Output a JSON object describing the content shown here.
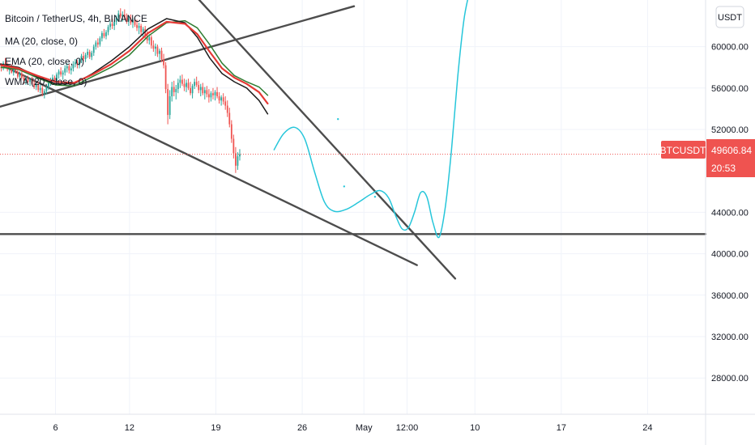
{
  "chart_data": {
    "type": "candlestick",
    "title": "Bitcoin / TetherUS, 4h, BINANCE",
    "symbol_tag": "BTCUSDT",
    "last_price": "49606.84",
    "countdown": "20:53",
    "currency": "USDT",
    "indicators": [
      {
        "label": "MA (20, close, 0)",
        "color": "#2e7d32"
      },
      {
        "label": "EMA (20, close, 0)",
        "color": "#e53935"
      },
      {
        "label": "WMA (20, close, 0)",
        "color": "#1e1e1e"
      }
    ],
    "y_ticks": [
      "60000.00",
      "56000.00",
      "52000.00",
      "44000.00",
      "40000.00",
      "36000.00",
      "32000.00",
      "28000.00"
    ],
    "y_tick_values": [
      60000,
      56000,
      52000,
      44000,
      40000,
      36000,
      32000,
      28000
    ],
    "ylim": [
      24500,
      64500
    ],
    "x_ticks": [
      "6",
      "12",
      "19",
      "26",
      "May",
      "12:00",
      "10",
      "17",
      "24"
    ],
    "x_tick_days": [
      6,
      12,
      19,
      26,
      31,
      34.5,
      40,
      47,
      54
    ],
    "xlim": [
      1.5,
      58.7
    ],
    "ohlc_day_start": 1.6,
    "ohlc_step_days": 0.1667,
    "ohlc": [
      [
        58100,
        58400,
        57600,
        57900
      ],
      [
        57900,
        58600,
        57700,
        58400
      ],
      [
        58400,
        58900,
        58000,
        58200
      ],
      [
        58200,
        58500,
        57600,
        57800
      ],
      [
        57800,
        58200,
        57300,
        58000
      ],
      [
        58000,
        58300,
        57400,
        57500
      ],
      [
        57500,
        58000,
        57200,
        57800
      ],
      [
        57800,
        58100,
        57400,
        57600
      ],
      [
        57600,
        57900,
        56900,
        57100
      ],
      [
        57100,
        57600,
        56800,
        57400
      ],
      [
        57400,
        57700,
        56900,
        57000
      ],
      [
        57000,
        57300,
        56400,
        56700
      ],
      [
        56700,
        57100,
        56300,
        56900
      ],
      [
        56900,
        57200,
        56500,
        56600
      ],
      [
        56600,
        57000,
        56200,
        56800
      ],
      [
        56800,
        57100,
        56300,
        56400
      ],
      [
        56400,
        56800,
        55900,
        56100
      ],
      [
        56100,
        56500,
        55800,
        56300
      ],
      [
        56300,
        56600,
        55600,
        55800
      ],
      [
        55800,
        56300,
        55500,
        56000
      ],
      [
        56000,
        56200,
        55200,
        55500
      ],
      [
        55500,
        55900,
        55000,
        55700
      ],
      [
        55700,
        56300,
        55400,
        56100
      ],
      [
        56100,
        56700,
        55800,
        56500
      ],
      [
        56500,
        57000,
        56200,
        56800
      ],
      [
        56800,
        57300,
        56400,
        57000
      ],
      [
        57000,
        57200,
        56500,
        56700
      ],
      [
        56700,
        57500,
        56500,
        57300
      ],
      [
        57300,
        57800,
        56900,
        57600
      ],
      [
        57600,
        58000,
        57100,
        57300
      ],
      [
        57300,
        57700,
        56800,
        57500
      ],
      [
        57500,
        58200,
        57200,
        57900
      ],
      [
        57900,
        58400,
        57500,
        58100
      ],
      [
        58100,
        58300,
        57400,
        57700
      ],
      [
        57700,
        58100,
        57300,
        57900
      ],
      [
        57900,
        58600,
        57600,
        58300
      ],
      [
        58300,
        58800,
        58000,
        58500
      ],
      [
        58500,
        58700,
        57900,
        58200
      ],
      [
        58200,
        58900,
        57900,
        58700
      ],
      [
        58700,
        59300,
        58400,
        59100
      ],
      [
        59100,
        59500,
        58600,
        58800
      ],
      [
        58800,
        59400,
        58500,
        59200
      ],
      [
        59200,
        59800,
        58900,
        59500
      ],
      [
        59500,
        59700,
        58800,
        59000
      ],
      [
        59000,
        59600,
        58700,
        59400
      ],
      [
        59400,
        60200,
        59100,
        60000
      ],
      [
        60000,
        60600,
        59700,
        60400
      ],
      [
        60400,
        60800,
        59900,
        60200
      ],
      [
        60200,
        61000,
        60000,
        60800
      ],
      [
        60800,
        61500,
        60500,
        61300
      ],
      [
        61300,
        61700,
        60800,
        61000
      ],
      [
        61000,
        61600,
        60700,
        61400
      ],
      [
        61400,
        62100,
        61100,
        61900
      ],
      [
        61900,
        62500,
        61600,
        62200
      ],
      [
        62200,
        62700,
        61700,
        62000
      ],
      [
        62000,
        62600,
        61600,
        62400
      ],
      [
        62400,
        63000,
        62100,
        62800
      ],
      [
        62800,
        63500,
        62500,
        63200
      ],
      [
        63200,
        63700,
        62700,
        62900
      ],
      [
        62900,
        63400,
        62400,
        63100
      ],
      [
        63100,
        63600,
        62600,
        62800
      ],
      [
        62800,
        63200,
        62200,
        62500
      ],
      [
        62500,
        63000,
        62000,
        62700
      ],
      [
        62700,
        63100,
        62100,
        62300
      ],
      [
        62300,
        62800,
        61800,
        62600
      ],
      [
        62600,
        62900,
        61900,
        62100
      ],
      [
        62100,
        62600,
        61500,
        61800
      ],
      [
        61800,
        62300,
        61200,
        62000
      ],
      [
        62000,
        62200,
        61100,
        61400
      ],
      [
        61400,
        61900,
        60900,
        61700
      ],
      [
        61700,
        62000,
        60800,
        61000
      ],
      [
        61000,
        61500,
        60300,
        60600
      ],
      [
        60600,
        61200,
        60200,
        60900
      ],
      [
        60900,
        61100,
        59800,
        60100
      ],
      [
        60100,
        60600,
        59500,
        59800
      ],
      [
        59800,
        60300,
        59100,
        60000
      ],
      [
        60000,
        60200,
        59000,
        59300
      ],
      [
        59300,
        59800,
        58700,
        59600
      ],
      [
        59600,
        59900,
        58500,
        58800
      ],
      [
        58800,
        59300,
        57900,
        58200
      ],
      [
        58200,
        58500,
        55500,
        55900
      ],
      [
        55900,
        56400,
        52500,
        53400
      ],
      [
        53400,
        55800,
        53000,
        55200
      ],
      [
        55200,
        56600,
        54700,
        56100
      ],
      [
        56100,
        56700,
        55200,
        55600
      ],
      [
        55600,
        56300,
        54900,
        55900
      ],
      [
        55900,
        56900,
        55500,
        56500
      ],
      [
        56500,
        57200,
        56000,
        56800
      ],
      [
        56800,
        57300,
        56200,
        56400
      ],
      [
        56400,
        56900,
        55700,
        56100
      ],
      [
        56100,
        56800,
        55600,
        56500
      ],
      [
        56500,
        56900,
        55800,
        56000
      ],
      [
        56000,
        56600,
        55300,
        55500
      ],
      [
        55500,
        56400,
        55000,
        56200
      ],
      [
        56200,
        56900,
        55900,
        56600
      ],
      [
        56600,
        57100,
        56100,
        56300
      ],
      [
        56300,
        56700,
        55500,
        55800
      ],
      [
        55800,
        56400,
        55200,
        56100
      ],
      [
        56100,
        56500,
        55300,
        55500
      ],
      [
        55500,
        56100,
        54900,
        55800
      ],
      [
        55800,
        56200,
        55100,
        55400
      ],
      [
        55400,
        55900,
        54600,
        55100
      ],
      [
        55100,
        55700,
        54700,
        55500
      ],
      [
        55500,
        56000,
        54900,
        55300
      ],
      [
        55300,
        55800,
        54800,
        55600
      ],
      [
        55600,
        56100,
        55000,
        55200
      ],
      [
        55200,
        55600,
        54500,
        54800
      ],
      [
        54800,
        55300,
        54300,
        55100
      ],
      [
        55100,
        55500,
        54400,
        54700
      ],
      [
        54700,
        55200,
        53900,
        54300
      ],
      [
        54300,
        54800,
        53200,
        53600
      ],
      [
        53600,
        54100,
        52200,
        52500
      ],
      [
        52500,
        52900,
        50700,
        51100
      ],
      [
        51100,
        51500,
        49200,
        49700
      ],
      [
        49700,
        50300,
        47800,
        48500
      ],
      [
        48500,
        49800,
        48100,
        49400
      ],
      [
        49400,
        50100,
        49000,
        49606
      ]
    ],
    "ma_line": [
      [
        1.6,
        58000
      ],
      [
        3,
        57800
      ],
      [
        4.5,
        57000
      ],
      [
        6,
        56300
      ],
      [
        7.5,
        56200
      ],
      [
        9,
        57100
      ],
      [
        10.5,
        58000
      ],
      [
        12,
        59200
      ],
      [
        13.5,
        61000
      ],
      [
        15,
        62300
      ],
      [
        16.5,
        62500
      ],
      [
        17.5,
        61800
      ],
      [
        18.5,
        60200
      ],
      [
        19.5,
        58400
      ],
      [
        20.5,
        57200
      ],
      [
        21.5,
        56600
      ],
      [
        22.5,
        56100
      ],
      [
        23.2,
        55300
      ]
    ],
    "ema_line": [
      [
        1.6,
        58200
      ],
      [
        3,
        57900
      ],
      [
        4.5,
        57200
      ],
      [
        6,
        56600
      ],
      [
        7.5,
        56500
      ],
      [
        9,
        57300
      ],
      [
        10.5,
        58300
      ],
      [
        12,
        59600
      ],
      [
        13.5,
        61300
      ],
      [
        15,
        62400
      ],
      [
        16.5,
        62200
      ],
      [
        17.5,
        61200
      ],
      [
        18.5,
        59500
      ],
      [
        19.5,
        57900
      ],
      [
        20.5,
        57000
      ],
      [
        21.5,
        56400
      ],
      [
        22.5,
        55600
      ],
      [
        23.2,
        54500
      ]
    ],
    "wma_line": [
      [
        1.6,
        58300
      ],
      [
        3,
        58000
      ],
      [
        4.5,
        57100
      ],
      [
        6,
        56400
      ],
      [
        7.5,
        56400
      ],
      [
        9,
        57400
      ],
      [
        10.5,
        58600
      ],
      [
        12,
        60000
      ],
      [
        13.5,
        61700
      ],
      [
        15,
        62700
      ],
      [
        16.5,
        62300
      ],
      [
        17.5,
        60900
      ],
      [
        18.5,
        58900
      ],
      [
        19.5,
        57400
      ],
      [
        20.5,
        56600
      ],
      [
        21.5,
        56000
      ],
      [
        22.5,
        54800
      ],
      [
        23.2,
        53500
      ]
    ],
    "trend_lines": [
      {
        "from": [
          1.5,
          54200
        ],
        "to": [
          30.2,
          63900
        ]
      },
      {
        "from": [
          1.5,
          58300
        ],
        "to": [
          35.3,
          38900
        ]
      },
      {
        "from": [
          17.5,
          64700
        ],
        "to": [
          38.4,
          37600
        ]
      },
      {
        "from": [
          1.5,
          41900
        ],
        "to": [
          58.7,
          41900
        ]
      }
    ],
    "projection": [
      [
        23.7,
        50000
      ],
      [
        24.5,
        51600
      ],
      [
        25.4,
        52200
      ],
      [
        26.2,
        51100
      ],
      [
        27.0,
        47900
      ],
      [
        27.8,
        45000
      ],
      [
        28.6,
        44100
      ],
      [
        29.6,
        44300
      ],
      [
        30.6,
        45000
      ],
      [
        31.5,
        45700
      ],
      [
        32.3,
        46100
      ],
      [
        33.0,
        45400
      ],
      [
        33.6,
        43600
      ],
      [
        34.1,
        42400
      ],
      [
        34.6,
        42500
      ],
      [
        35.1,
        44000
      ],
      [
        35.6,
        45900
      ],
      [
        36.1,
        45500
      ],
      [
        36.6,
        43000
      ],
      [
        37.1,
        41600
      ],
      [
        37.6,
        44500
      ],
      [
        38.1,
        50000
      ],
      [
        38.6,
        57000
      ],
      [
        39.1,
        62500
      ],
      [
        39.5,
        65000
      ]
    ],
    "projection_dots": [
      [
        28.9,
        53000
      ],
      [
        29.4,
        46500
      ],
      [
        31.9,
        45500
      ]
    ]
  }
}
